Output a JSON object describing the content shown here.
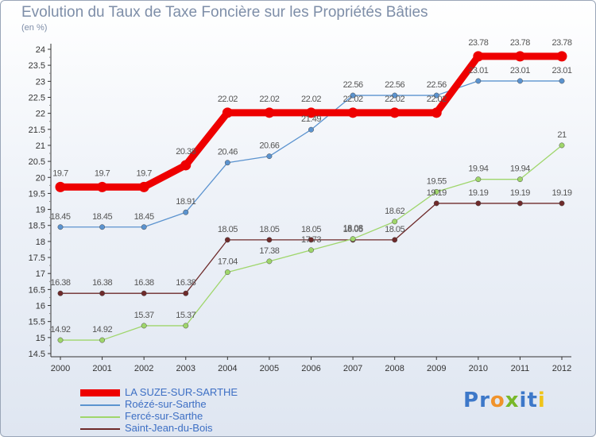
{
  "title": "Evolution du Taux de Taxe Foncière sur les Propriétés Bâties",
  "unit": "(en %)",
  "logo": {
    "letters": [
      "P",
      "r",
      "o",
      "x",
      "i",
      "t",
      "i"
    ],
    "colors": [
      "#3d78c9",
      "#3d78c9",
      "#f0932b",
      "#78b82a",
      "#3d78c9",
      "#3d78c9",
      "#f0c419"
    ]
  },
  "chart_data": {
    "type": "line",
    "title": "Evolution du Taux de Taxe Foncière sur les Propriétés Bâties",
    "ylabel": "(en %)",
    "xlabel": "",
    "x": [
      "2000",
      "2001",
      "2002",
      "2003",
      "2004",
      "2005",
      "2006",
      "2007",
      "2008",
      "2009",
      "2010",
      "2011",
      "2012"
    ],
    "ylim": [
      14.5,
      24
    ],
    "yticks": [
      "14.5",
      "15",
      "15.5",
      "16",
      "16.5",
      "17",
      "17.5",
      "18",
      "18.5",
      "19",
      "19.5",
      "20",
      "20.5",
      "21",
      "21.5",
      "22",
      "22.5",
      "23",
      "23.5",
      "24"
    ],
    "grid": false,
    "legend_position": "bottom-left",
    "series": [
      {
        "name": "LA SUZE-SUR-SARTHE",
        "color": "#ee0000",
        "values": [
          19.7,
          19.7,
          19.7,
          20.38,
          22.02,
          22.02,
          22.02,
          22.02,
          22.02,
          22.02,
          23.78,
          23.78,
          23.78
        ],
        "labels": [
          "19.7",
          "19.7",
          "19.7",
          "20.38",
          "22.02",
          "22.02",
          "22.02",
          "22.02",
          "22.02",
          "22.02",
          "23.78",
          "23.78",
          "23.78"
        ]
      },
      {
        "name": "Roézé-sur-Sarthe",
        "color": "#5b93cf",
        "values": [
          18.45,
          18.45,
          18.45,
          18.91,
          20.46,
          20.66,
          21.49,
          22.56,
          22.56,
          22.56,
          23.01,
          23.01,
          23.01
        ],
        "labels": [
          "18.45",
          "18.45",
          "18.45",
          "18.91",
          "20.46",
          "20.66",
          "21.49",
          "22.56",
          "22.56",
          "22.56",
          "23.01",
          "23.01",
          "23.01"
        ]
      },
      {
        "name": "Fercé-sur-Sarthe",
        "color": "#9fd66b",
        "values": [
          14.92,
          14.92,
          15.37,
          15.37,
          17.04,
          17.38,
          17.73,
          18.08,
          18.62,
          19.55,
          19.94,
          19.94,
          21
        ],
        "labels": [
          "14.92",
          "14.92",
          "15.37",
          "15.37",
          "17.04",
          "17.38",
          "17.73",
          "18.08",
          "18.62",
          "19.55",
          "19.94",
          "19.94",
          "21"
        ]
      },
      {
        "name": "Saint-Jean-du-Bois",
        "color": "#6e2a2a",
        "values": [
          16.38,
          16.38,
          16.38,
          16.38,
          18.05,
          18.05,
          18.05,
          18.05,
          18.05,
          19.19,
          19.19,
          19.19,
          19.19
        ],
        "labels": [
          "16.38",
          "16.38",
          "16.38",
          "16.38",
          "18.05",
          "18.05",
          "18.05",
          "18.05",
          "18.05",
          "19.19",
          "19.19",
          "19.19",
          "19.19"
        ]
      }
    ]
  }
}
